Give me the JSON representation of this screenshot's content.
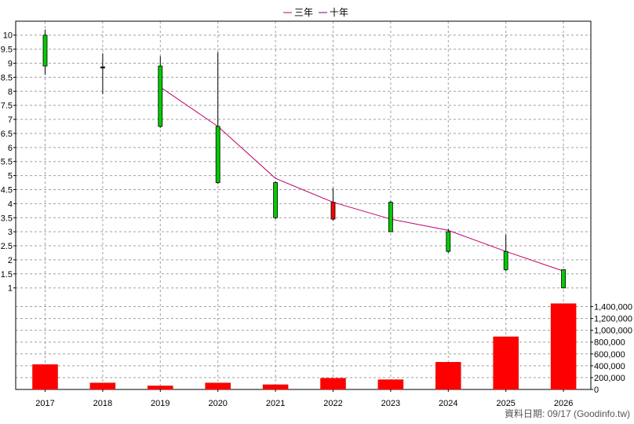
{
  "legend": [
    {
      "label": "三年",
      "color": "#c0006a"
    },
    {
      "label": "十年",
      "color": "#7000a0"
    }
  ],
  "footer": "資料日期: 09/17  (Goodinfo.tw)",
  "colors": {
    "up": "#00cc00",
    "down": "#ff0000",
    "volume": "#ff0000",
    "ma3": "#c0006a",
    "grid": "#a0a0a0"
  },
  "chart_data": {
    "type": "candlestick",
    "categories": [
      "2017",
      "2018",
      "2019",
      "2020",
      "2021",
      "2022",
      "2023",
      "2024",
      "2025",
      "2026"
    ],
    "price_axis": {
      "ylim": [
        0.6,
        10.3
      ],
      "ticks": [
        "1",
        "1.5",
        "2",
        "2.5",
        "3",
        "3.5",
        "4",
        "4.5",
        "5",
        "5.5",
        "6",
        "6.5",
        "7",
        "7.5",
        "8",
        "8.5",
        "9",
        "9.5",
        "10"
      ]
    },
    "volume_axis": {
      "ylim": [
        0,
        1500000
      ],
      "ticks": [
        "0",
        "200,000",
        "400,000",
        "600,000",
        "800,000",
        "1,000,000",
        "1,200,000",
        "1,400,000"
      ]
    },
    "candles": [
      {
        "x": "2017",
        "open": 8.9,
        "close": 10.0,
        "high": 10.2,
        "low": 8.6
      },
      {
        "x": "2018",
        "open": 8.87,
        "close": 8.87,
        "high": 9.35,
        "low": 7.9
      },
      {
        "x": "2019",
        "open": 6.75,
        "close": 8.9,
        "high": 9.25,
        "low": 6.7
      },
      {
        "x": "2020",
        "open": 4.75,
        "close": 6.75,
        "high": 9.4,
        "low": 4.7
      },
      {
        "x": "2021",
        "open": 3.5,
        "close": 4.75,
        "high": 4.8,
        "low": 3.45
      },
      {
        "x": "2022",
        "open": 4.05,
        "close": 3.45,
        "high": 4.55,
        "low": 3.4
      },
      {
        "x": "2023",
        "open": 3.0,
        "close": 4.05,
        "high": 4.1,
        "low": 3.0
      },
      {
        "x": "2024",
        "open": 2.3,
        "close": 3.0,
        "high": 3.1,
        "low": 2.25
      },
      {
        "x": "2025",
        "open": 1.65,
        "close": 2.3,
        "high": 2.9,
        "low": 1.6
      },
      {
        "x": "2026",
        "open": 1.0,
        "close": 1.65,
        "high": 1.65,
        "low": 1.0
      }
    ],
    "series": [
      {
        "name": "三年",
        "x": [
          "2019",
          "2020",
          "2021",
          "2022",
          "2023",
          "2024",
          "2025",
          "2026"
        ],
        "values": [
          8.15,
          6.75,
          4.9,
          4.05,
          3.45,
          3.05,
          2.3,
          1.6
        ]
      }
    ],
    "volume": [
      420000,
      110000,
      60000,
      110000,
      80000,
      190000,
      165000,
      460000,
      890000,
      1450000
    ]
  }
}
